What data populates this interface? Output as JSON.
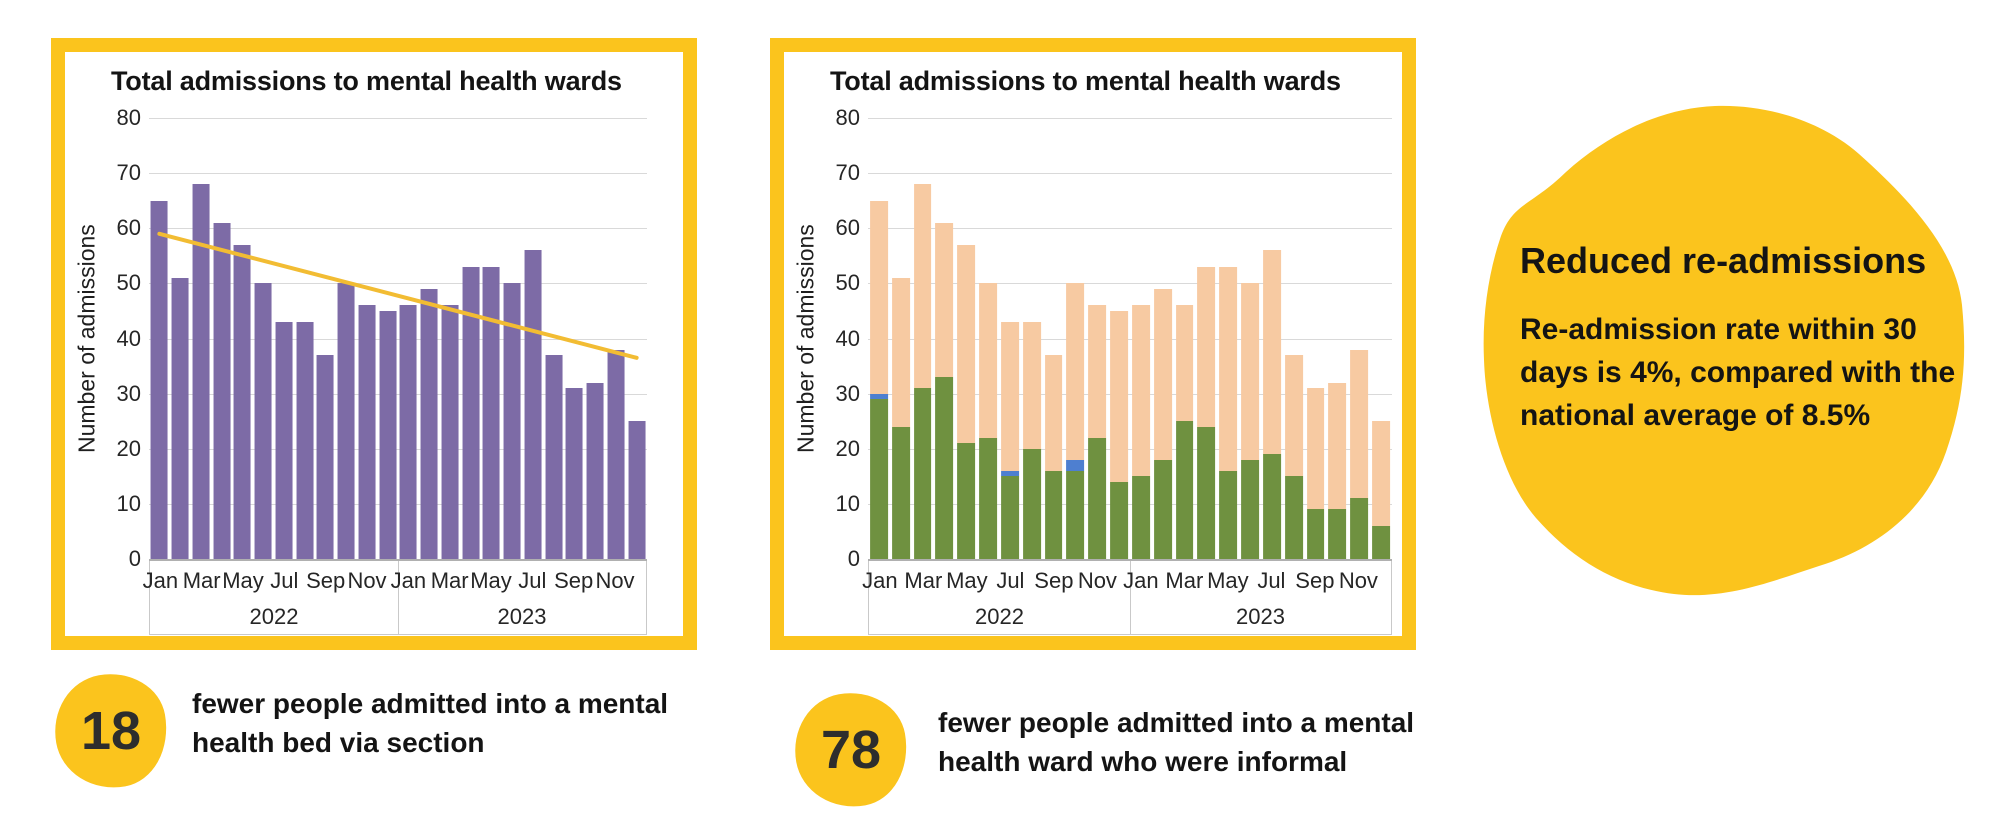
{
  "colors": {
    "card_border_yellow": "#FBC41D",
    "bar_purple": "#7D6BA6",
    "stack_green": "#6F9140",
    "stack_blue": "#4E7FD0",
    "stack_peach": "#F7CAA2",
    "trend_gold": "#F2BC33",
    "gridline_gray": "#D9D9D9",
    "axis_gray": "#B0B0B0"
  },
  "chart_data": [
    {
      "type": "bar",
      "title": "Total admissions to mental health wards",
      "xlabel": "",
      "ylabel": "Number of admissions",
      "ylim": [
        0,
        80
      ],
      "yticks": [
        0,
        10,
        20,
        30,
        40,
        50,
        60,
        70,
        80
      ],
      "grid": true,
      "legend": "none",
      "categories": [
        "Jan 2022",
        "Feb 2022",
        "Mar 2022",
        "Apr 2022",
        "May 2022",
        "Jun 2022",
        "Jul 2022",
        "Aug 2022",
        "Sep 2022",
        "Oct 2022",
        "Nov 2022",
        "Dec 2022",
        "Jan 2023",
        "Feb 2023",
        "Mar 2023",
        "Apr 2023",
        "May 2023",
        "Jun 2023",
        "Jul 2023",
        "Aug 2023",
        "Sep 2023",
        "Oct 2023",
        "Nov 2023",
        "Dec 2023"
      ],
      "values": [
        65,
        51,
        68,
        61,
        57,
        50,
        43,
        43,
        37,
        50,
        46,
        45,
        46,
        49,
        46,
        53,
        53,
        50,
        56,
        37,
        31,
        32,
        38,
        25
      ],
      "bar_color": "#7D6BA6",
      "trendline": {
        "start_value": 59,
        "end_value": 36.5,
        "color": "#F2BC33"
      },
      "x_axis": {
        "month_labels_shown": [
          "Jan",
          "Mar",
          "May",
          "Jul",
          "Sep",
          "Nov"
        ],
        "month_positions": [
          0,
          2,
          4,
          6,
          8,
          10
        ],
        "year_labels": [
          "2022",
          "2023"
        ]
      }
    },
    {
      "type": "stacked-bar",
      "title": "Total admissions to mental health wards",
      "xlabel": "",
      "ylabel": "Number of admissions",
      "ylim": [
        0,
        80
      ],
      "yticks": [
        0,
        10,
        20,
        30,
        40,
        50,
        60,
        70,
        80
      ],
      "grid": true,
      "legend": "none",
      "categories": [
        "Jan 2022",
        "Feb 2022",
        "Mar 2022",
        "Apr 2022",
        "May 2022",
        "Jun 2022",
        "Jul 2022",
        "Aug 2022",
        "Sep 2022",
        "Oct 2022",
        "Nov 2022",
        "Dec 2022",
        "Jan 2023",
        "Feb 2023",
        "Mar 2023",
        "Apr 2023",
        "May 2023",
        "Jun 2023",
        "Jul 2023",
        "Aug 2023",
        "Sep 2023",
        "Oct 2023",
        "Nov 2023",
        "Dec 2023"
      ],
      "series": [
        {
          "name": "green-bottom-segment",
          "color": "#6F9140",
          "values": [
            29,
            24,
            31,
            33,
            21,
            22,
            15,
            20,
            16,
            16,
            22,
            14,
            15,
            18,
            25,
            24,
            16,
            18,
            19,
            15,
            9,
            9,
            11,
            6
          ]
        },
        {
          "name": "blue-middle-segment",
          "color": "#4E7FD0",
          "values": [
            1,
            0,
            0,
            0,
            0,
            0,
            1,
            0,
            0,
            2,
            0,
            0,
            0,
            0,
            0,
            0,
            0,
            0,
            0,
            0,
            0,
            0,
            0,
            0
          ]
        },
        {
          "name": "peach-top-segment",
          "color": "#F7CAA2",
          "values": [
            35,
            27,
            37,
            28,
            36,
            28,
            27,
            23,
            21,
            32,
            24,
            31,
            31,
            31,
            21,
            29,
            37,
            32,
            37,
            22,
            22,
            23,
            27,
            19
          ]
        }
      ],
      "x_axis": {
        "month_labels_shown": [
          "Jan",
          "Mar",
          "May",
          "Jul",
          "Sep",
          "Nov"
        ],
        "month_positions": [
          0,
          2,
          4,
          6,
          8,
          10
        ],
        "year_labels": [
          "2022",
          "2023"
        ]
      }
    }
  ],
  "highlight": {
    "title": "Reduced re-admissions",
    "body": "Re-admission rate within 30 days is 4%, compared with the national average of 8.5%"
  },
  "stats": [
    {
      "value": "18",
      "label": "fewer people admitted into a mental health bed via section"
    },
    {
      "value": "78",
      "label": "fewer people admitted into a mental health ward who were informal"
    }
  ]
}
